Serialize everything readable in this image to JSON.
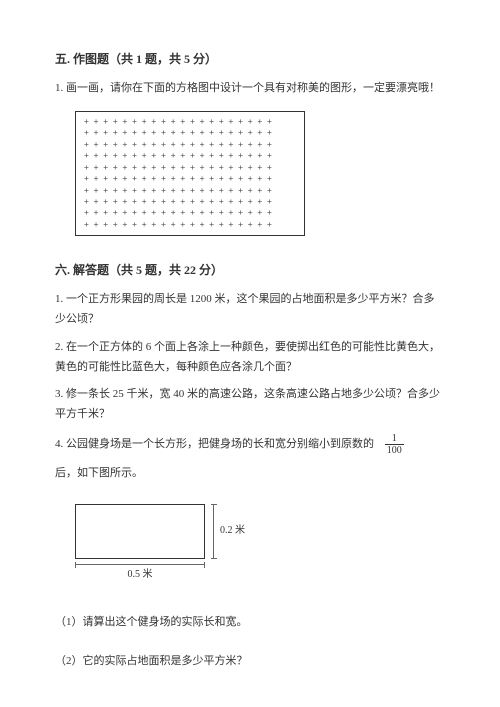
{
  "section5": {
    "title": "五. 作图题（共 1 题，共 5 分）",
    "q1": "1. 画一画，请你在下面的方格图中设计一个具有对称美的图形，一定要漂亮哦！",
    "grid": {
      "rows": 10,
      "cols": 20,
      "dot_char": "+"
    }
  },
  "section6": {
    "title": "六. 解答题（共 5 题，共 22 分）",
    "q1": "1. 一个正方形果园的周长是 1200 米，这个果园的占地面积是多少平方米？合多少公顷？",
    "q2": "2. 在一个正方体的 6 个面上各涂上一种颜色，要使掷出红色的可能性比黄色大，黄色的可能性比蓝色大，每种颜色应各涂几个面？",
    "q3": "3. 修一条长 25 千米，宽 40 米的高速公路，这条高速公路占地多少公顷？合多少平方千米？",
    "q4_part1": "4. 公园健身场是一个长方形，把健身场的长和宽分别缩小到原数的",
    "q4_fraction": {
      "num": "1",
      "den": "100"
    },
    "q4_part2": "后，如下图所示。",
    "diagram": {
      "width_label": "0.5 米",
      "height_label": "0.2 米"
    },
    "q4_sub1": "（1）请算出这个健身场的实际长和宽。",
    "q4_sub2": "（2）它的实际占地面积是多少平方米？"
  },
  "colors": {
    "text": "#333333",
    "background": "#ffffff",
    "border": "#333333"
  }
}
